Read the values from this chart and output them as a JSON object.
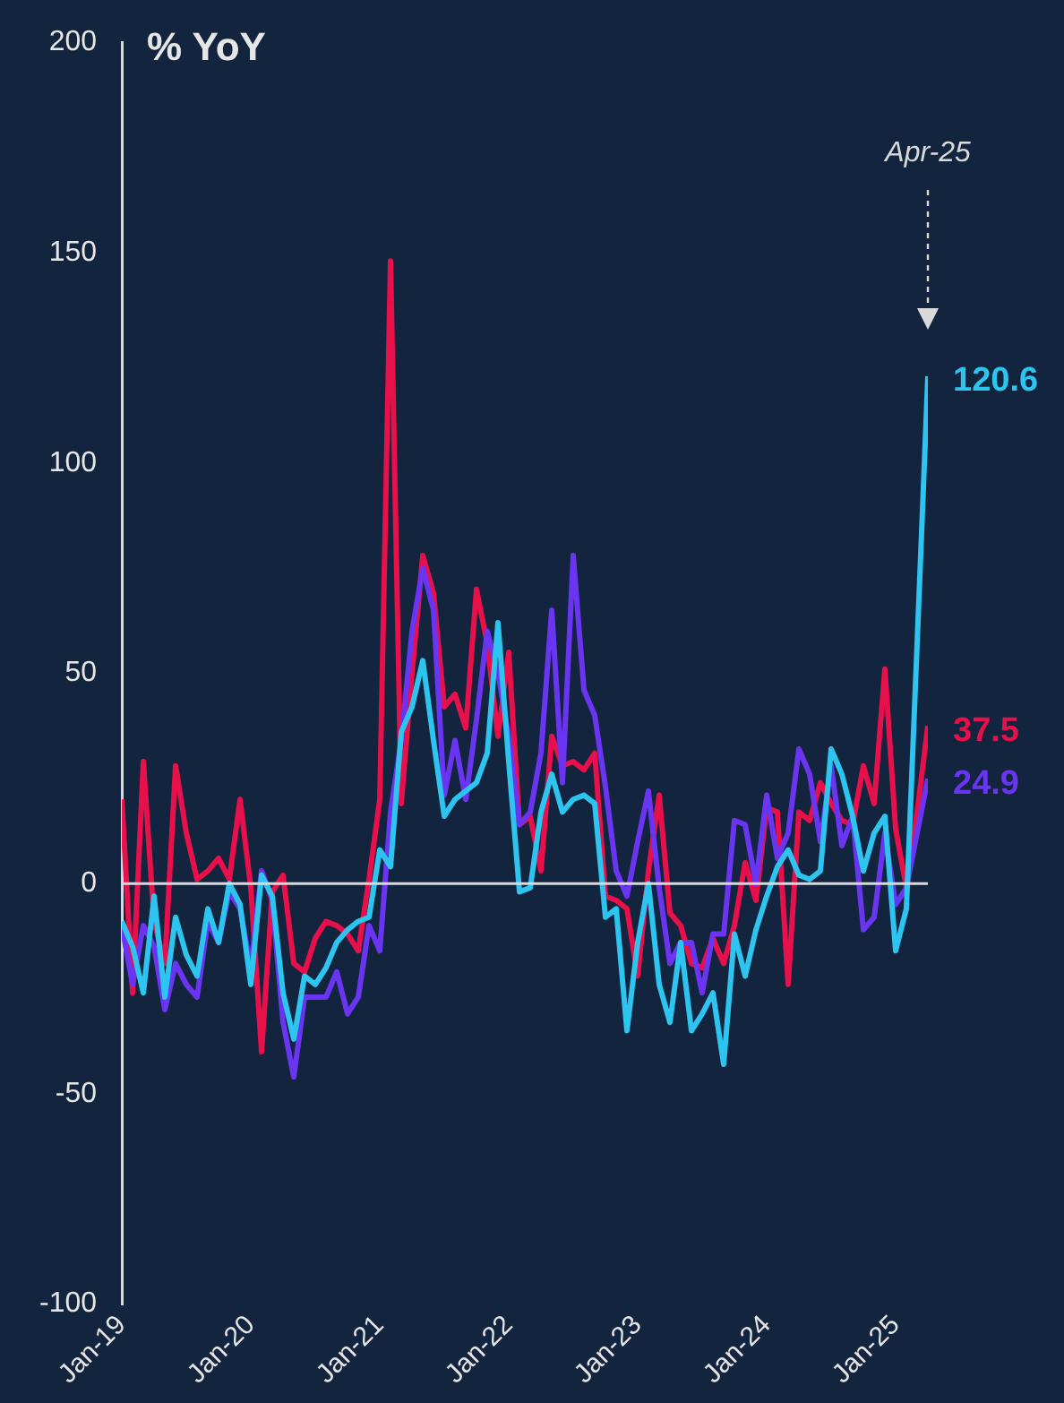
{
  "chart_data": {
    "type": "line",
    "title": "% YoY",
    "x": [
      "2019-01",
      "2019-02",
      "2019-03",
      "2019-04",
      "2019-05",
      "2019-06",
      "2019-07",
      "2019-08",
      "2019-09",
      "2019-10",
      "2019-11",
      "2019-12",
      "2020-01",
      "2020-02",
      "2020-03",
      "2020-04",
      "2020-05",
      "2020-06",
      "2020-07",
      "2020-08",
      "2020-09",
      "2020-10",
      "2020-11",
      "2020-12",
      "2021-01",
      "2021-02",
      "2021-03",
      "2021-04",
      "2021-05",
      "2021-06",
      "2021-07",
      "2021-08",
      "2021-09",
      "2021-10",
      "2021-11",
      "2021-12",
      "2022-01",
      "2022-02",
      "2022-03",
      "2022-04",
      "2022-05",
      "2022-06",
      "2022-07",
      "2022-08",
      "2022-09",
      "2022-10",
      "2022-11",
      "2022-12",
      "2023-01",
      "2023-02",
      "2023-03",
      "2023-04",
      "2023-05",
      "2023-06",
      "2023-07",
      "2023-08",
      "2023-09",
      "2023-10",
      "2023-11",
      "2023-12",
      "2024-01",
      "2024-02",
      "2024-03",
      "2024-04",
      "2024-05",
      "2024-06",
      "2024-07",
      "2024-08",
      "2024-09",
      "2024-10",
      "2024-11",
      "2024-12",
      "2025-01",
      "2025-02",
      "2025-03",
      "2025-04"
    ],
    "series": [
      {
        "color": "#2ec4f0",
        "values": [
          -9,
          -15,
          -26,
          -3,
          -27,
          -8,
          -17,
          -22,
          -6,
          -14,
          0,
          -5,
          -24,
          2,
          -3,
          -26,
          -37,
          -22,
          -24,
          -20,
          -14,
          -11,
          -9,
          -8,
          8,
          4,
          36,
          42,
          53,
          34,
          16,
          20,
          22,
          24,
          31,
          62,
          29,
          -2,
          -1,
          17,
          26,
          17,
          20,
          21,
          19,
          -8,
          -6,
          -35,
          -14,
          0,
          -24,
          -33,
          -14,
          -35,
          -31,
          -26,
          -43,
          -12,
          -22,
          -11,
          -3,
          4,
          8,
          2,
          1,
          3,
          32,
          26,
          16,
          3,
          12,
          16,
          -16,
          -6,
          57,
          120.6
        ],
        "value_labels": [
          null,
          null,
          null,
          null,
          null,
          null,
          null,
          null,
          null,
          null,
          null,
          null,
          null,
          null,
          null,
          null,
          null,
          null,
          null,
          null,
          null,
          null,
          null,
          null,
          null,
          null,
          null,
          null,
          null,
          null,
          null,
          null,
          null,
          null,
          null,
          null,
          null,
          null,
          null,
          null,
          null,
          null,
          null,
          null,
          null,
          null,
          null,
          null,
          null,
          null,
          null,
          null,
          null,
          null,
          null,
          null,
          null,
          null,
          null,
          null,
          null,
          null,
          null,
          null,
          null,
          null,
          null,
          null,
          null,
          null,
          null,
          null,
          null,
          null,
          null,
          "120.6"
        ]
      },
      {
        "color": "#6a35f0",
        "values": [
          -10,
          -24,
          -10,
          -15,
          -30,
          -19,
          -24,
          -27,
          -9,
          -14,
          -2,
          -6,
          -20,
          3,
          -4,
          -33,
          -46,
          -27,
          -27,
          -27,
          -21,
          -31,
          -27,
          -10,
          -16,
          17,
          34,
          60,
          75,
          65,
          21,
          34,
          20,
          39,
          60,
          50,
          35,
          14,
          17,
          31,
          65,
          24,
          78,
          46,
          40,
          23,
          3,
          -3,
          10,
          22,
          -1,
          -19,
          -14,
          -14,
          -26,
          -12,
          -12,
          15,
          14,
          0,
          21,
          6,
          12,
          32,
          26,
          10,
          28,
          9,
          16,
          -11,
          -8,
          12,
          -5,
          -1,
          12,
          24.9
        ],
        "value_labels": [
          null,
          null,
          null,
          null,
          null,
          null,
          null,
          null,
          null,
          null,
          null,
          null,
          null,
          null,
          null,
          null,
          null,
          null,
          null,
          null,
          null,
          null,
          null,
          null,
          null,
          null,
          null,
          null,
          null,
          null,
          null,
          null,
          null,
          null,
          null,
          null,
          null,
          null,
          null,
          null,
          null,
          null,
          null,
          null,
          null,
          null,
          null,
          null,
          null,
          null,
          null,
          null,
          null,
          null,
          null,
          null,
          null,
          null,
          null,
          null,
          null,
          null,
          null,
          null,
          null,
          null,
          null,
          null,
          null,
          null,
          null,
          null,
          null,
          null,
          null,
          "24.9"
        ]
      },
      {
        "color": "#e8104a",
        "values": [
          20,
          -26,
          29,
          -9,
          -19,
          28,
          12,
          1,
          3,
          6,
          1,
          20,
          -1,
          -40,
          -2,
          2,
          -19,
          -21,
          -13,
          -9,
          -10,
          -12,
          -16,
          1,
          20,
          148,
          19,
          50,
          78,
          69,
          42,
          45,
          37,
          70,
          57,
          35,
          55,
          14,
          16,
          3,
          35,
          28,
          29,
          27,
          31,
          -3,
          -4,
          -6,
          -22,
          3,
          21,
          -7,
          -10,
          -19,
          -20,
          -13,
          -19,
          -10,
          5,
          -4,
          18,
          17,
          -24,
          17,
          15,
          24,
          19,
          15,
          14,
          28,
          19,
          51,
          13,
          -1,
          17,
          37.5
        ],
        "value_labels": [
          null,
          null,
          null,
          null,
          null,
          null,
          null,
          null,
          null,
          null,
          null,
          null,
          null,
          null,
          null,
          null,
          null,
          null,
          null,
          null,
          null,
          null,
          null,
          null,
          null,
          null,
          null,
          null,
          null,
          null,
          null,
          null,
          null,
          null,
          null,
          null,
          null,
          null,
          null,
          null,
          null,
          null,
          null,
          null,
          null,
          null,
          null,
          null,
          null,
          null,
          null,
          null,
          null,
          null,
          null,
          null,
          null,
          null,
          null,
          null,
          null,
          null,
          null,
          null,
          null,
          null,
          null,
          null,
          null,
          null,
          null,
          null,
          null,
          null,
          null,
          "37.5"
        ]
      }
    ],
    "xlim": [
      "2019-01",
      "2025-04"
    ],
    "xticks": [
      {
        "value": "2019-01",
        "label": "Jan-19"
      },
      {
        "value": "2020-01",
        "label": "Jan-20"
      },
      {
        "value": "2021-01",
        "label": "Jan-21"
      },
      {
        "value": "2022-01",
        "label": "Jan-22"
      },
      {
        "value": "2023-01",
        "label": "Jan-23"
      },
      {
        "value": "2024-01",
        "label": "Jan-24"
      },
      {
        "value": "2025-01",
        "label": "Jan-25"
      }
    ],
    "ylim": [
      -100,
      200
    ],
    "yticks": [
      -100,
      -50,
      0,
      50,
      100,
      150,
      200
    ],
    "ref_lines": [
      {
        "axis": "y",
        "value": 0,
        "color": "#d9d9d9"
      }
    ],
    "annotations": [
      "Apr-25"
    ],
    "grid": false,
    "legend": false,
    "marker": "none",
    "line_style": "solid"
  }
}
